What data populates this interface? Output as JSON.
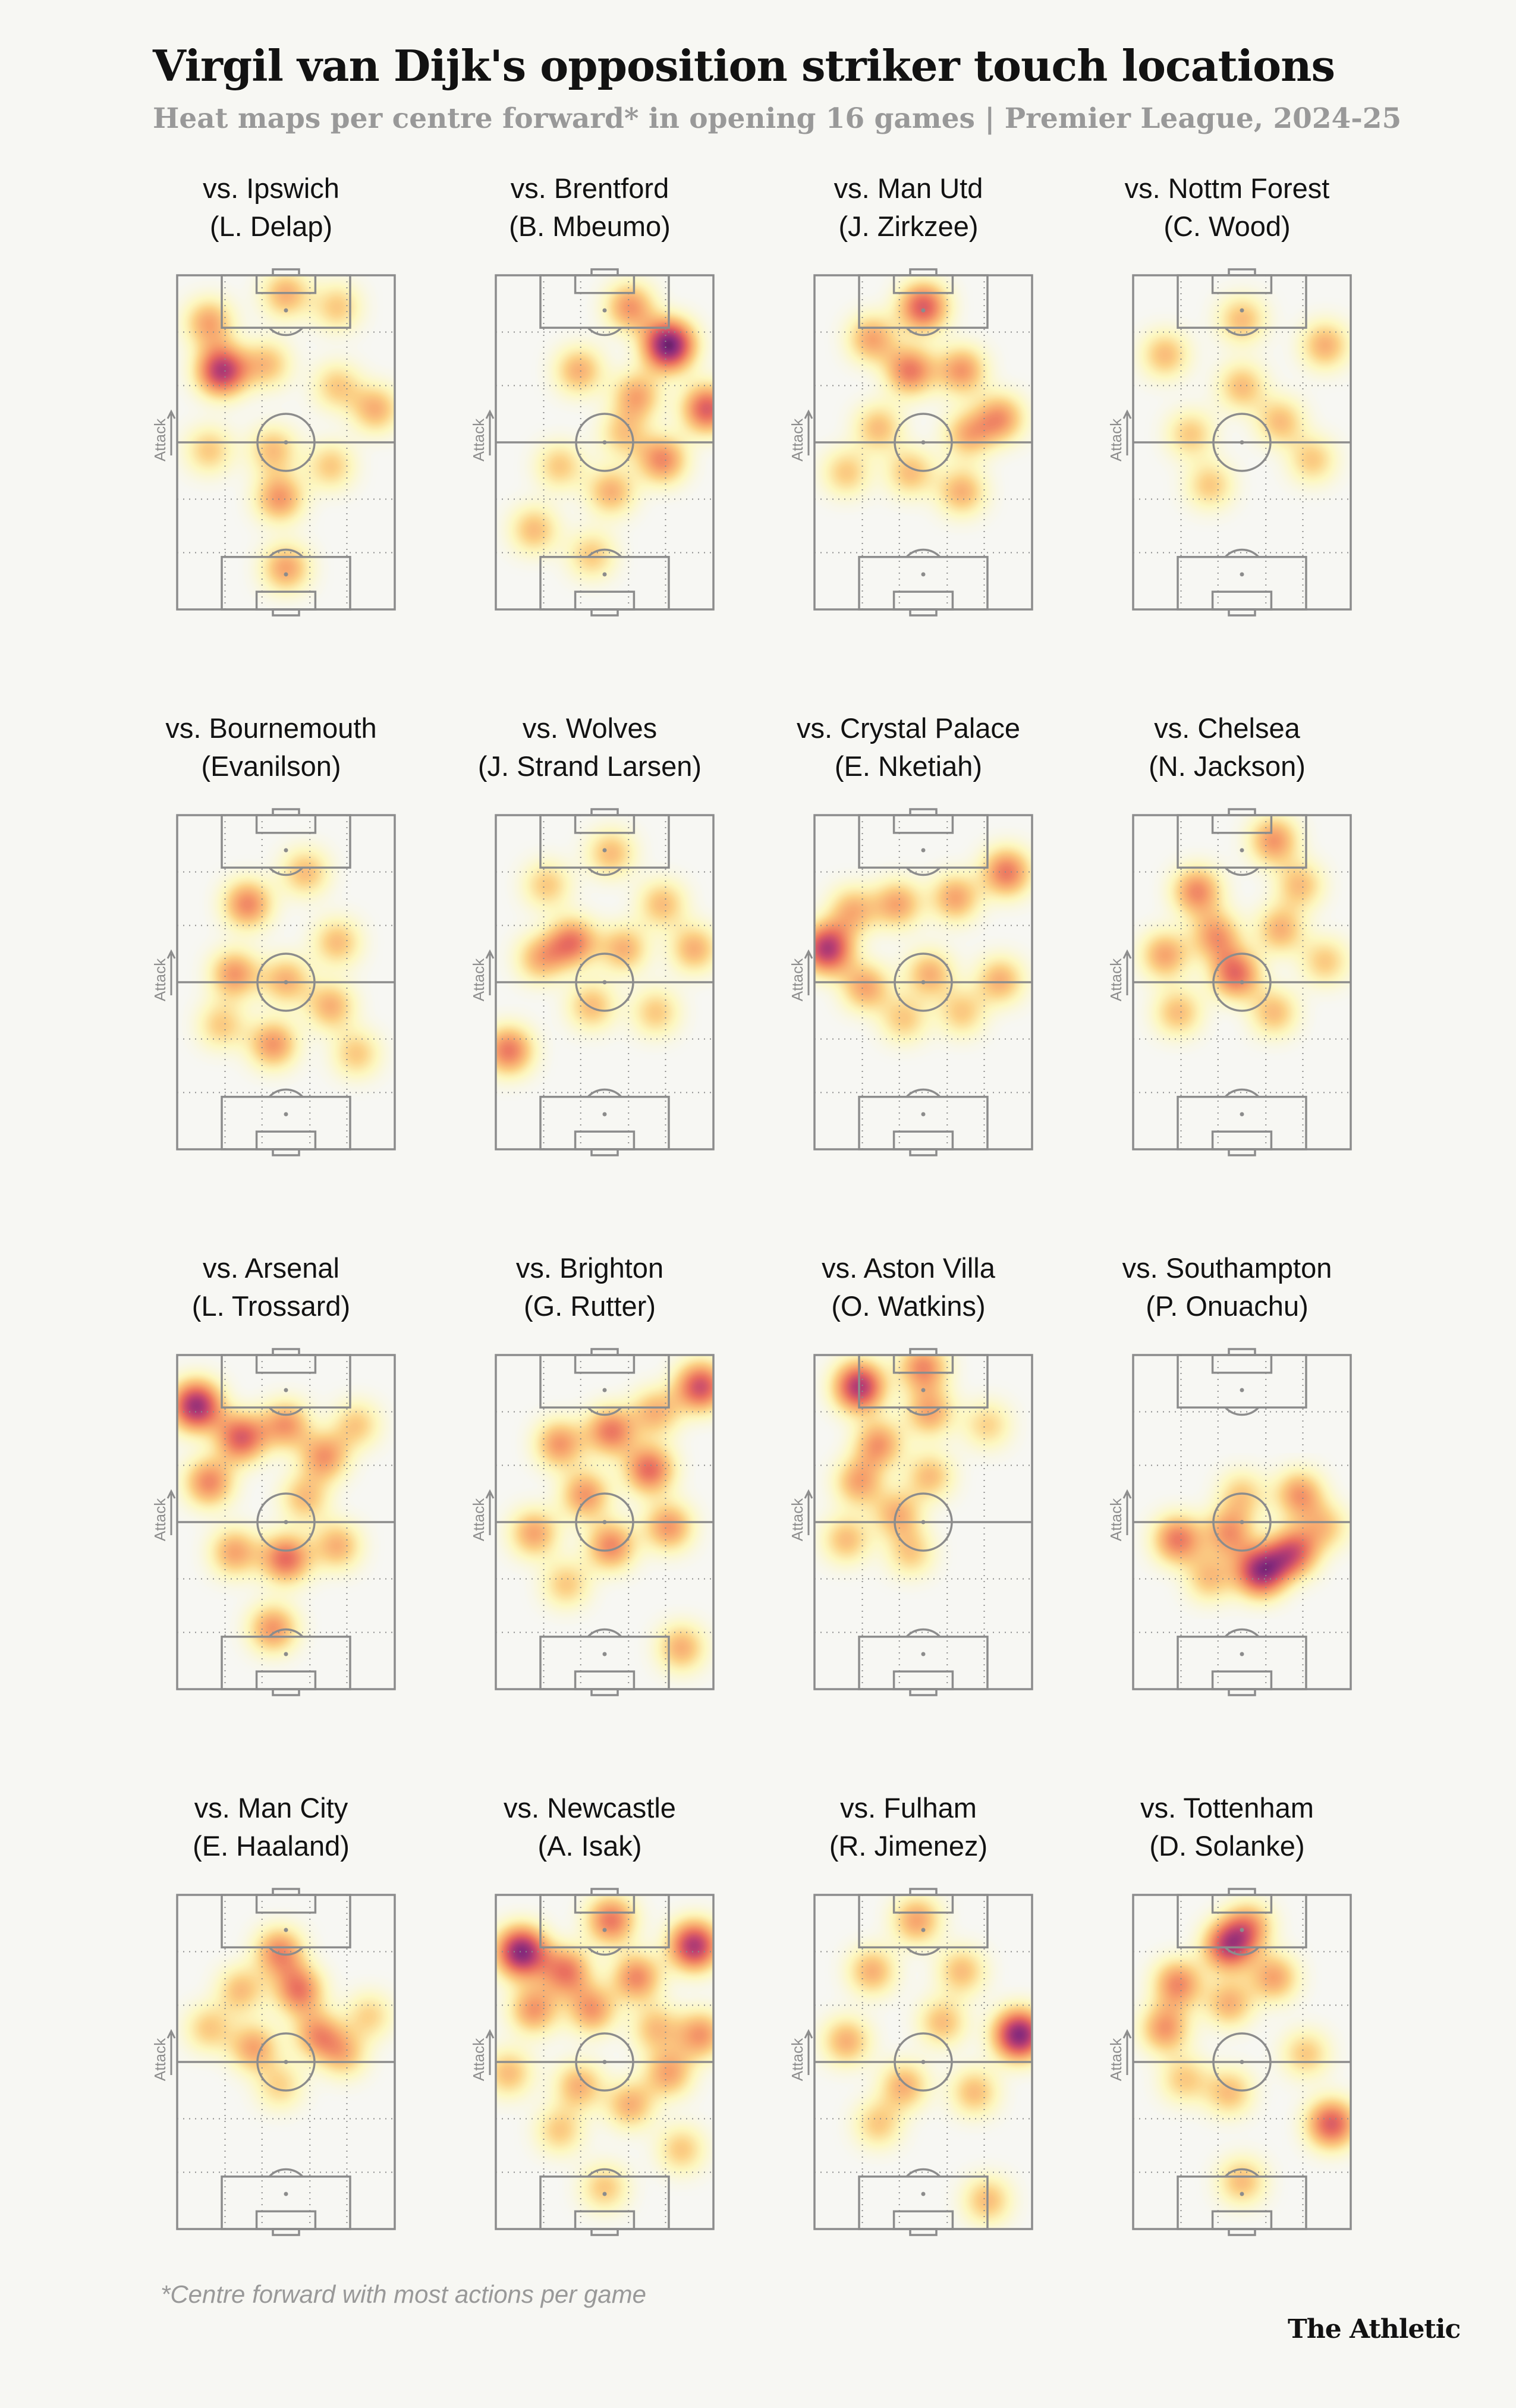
{
  "header": {
    "title": "Virgil van Dijk's opposition striker touch locations",
    "subtitle": "Heat maps per centre forward* in opening 16 games | Premier League, 2024-25"
  },
  "footer": {
    "footnote": "*Centre forward with most actions per game",
    "brand": "The Athletic"
  },
  "colors": {
    "background": "#f7f7f3",
    "pitch_lines": "#8c8c8c",
    "heat_scale": [
      "#fff7b0",
      "#fcd287",
      "#f7a36c",
      "#ea6f5f",
      "#c24470",
      "#862a7c",
      "#321149"
    ]
  },
  "chart_data": {
    "type": "heatmap",
    "axis_label": "Attack",
    "pitch": {
      "width": 68,
      "length": 105
    },
    "note": "Touch density peaks per match; x = 0 (left touchline) to 68, y = 0 (goal being attacked, top) to 105; w = relative intensity 0-1",
    "panels": [
      {
        "opponent": "vs. Ipswich",
        "player": "(L. Delap)",
        "hotspots": [
          {
            "x": 14,
            "y": 30,
            "w": 0.85
          },
          {
            "x": 10,
            "y": 15,
            "w": 0.45
          },
          {
            "x": 34,
            "y": 6,
            "w": 0.4
          },
          {
            "x": 50,
            "y": 10,
            "w": 0.3
          },
          {
            "x": 28,
            "y": 28,
            "w": 0.35
          },
          {
            "x": 62,
            "y": 42,
            "w": 0.4
          },
          {
            "x": 50,
            "y": 35,
            "w": 0.3
          },
          {
            "x": 30,
            "y": 55,
            "w": 0.35
          },
          {
            "x": 32,
            "y": 70,
            "w": 0.5
          },
          {
            "x": 48,
            "y": 60,
            "w": 0.3
          },
          {
            "x": 34,
            "y": 92,
            "w": 0.45
          },
          {
            "x": 10,
            "y": 55,
            "w": 0.3
          }
        ]
      },
      {
        "opponent": "vs. Brentford",
        "player": "(B. Mbeumo)",
        "hotspots": [
          {
            "x": 54,
            "y": 22,
            "w": 1.0
          },
          {
            "x": 66,
            "y": 42,
            "w": 0.7
          },
          {
            "x": 42,
            "y": 10,
            "w": 0.5
          },
          {
            "x": 26,
            "y": 30,
            "w": 0.4
          },
          {
            "x": 44,
            "y": 38,
            "w": 0.45
          },
          {
            "x": 52,
            "y": 58,
            "w": 0.55
          },
          {
            "x": 36,
            "y": 68,
            "w": 0.4
          },
          {
            "x": 20,
            "y": 60,
            "w": 0.3
          },
          {
            "x": 12,
            "y": 80,
            "w": 0.35
          },
          {
            "x": 30,
            "y": 88,
            "w": 0.3
          },
          {
            "x": 40,
            "y": 50,
            "w": 0.3
          }
        ]
      },
      {
        "opponent": "vs. Man Utd",
        "player": "(J. Zirkzee)",
        "hotspots": [
          {
            "x": 34,
            "y": 10,
            "w": 0.7
          },
          {
            "x": 18,
            "y": 20,
            "w": 0.45
          },
          {
            "x": 30,
            "y": 30,
            "w": 0.6
          },
          {
            "x": 46,
            "y": 30,
            "w": 0.5
          },
          {
            "x": 58,
            "y": 45,
            "w": 0.5
          },
          {
            "x": 48,
            "y": 50,
            "w": 0.4
          },
          {
            "x": 20,
            "y": 48,
            "w": 0.35
          },
          {
            "x": 10,
            "y": 62,
            "w": 0.3
          },
          {
            "x": 30,
            "y": 62,
            "w": 0.35
          },
          {
            "x": 46,
            "y": 68,
            "w": 0.4
          }
        ]
      },
      {
        "opponent": "vs. Nottm Forest",
        "player": "(C. Wood)",
        "hotspots": [
          {
            "x": 10,
            "y": 25,
            "w": 0.35
          },
          {
            "x": 34,
            "y": 14,
            "w": 0.35
          },
          {
            "x": 60,
            "y": 22,
            "w": 0.4
          },
          {
            "x": 34,
            "y": 35,
            "w": 0.35
          },
          {
            "x": 18,
            "y": 50,
            "w": 0.3
          },
          {
            "x": 46,
            "y": 46,
            "w": 0.35
          },
          {
            "x": 56,
            "y": 58,
            "w": 0.3
          },
          {
            "x": 24,
            "y": 66,
            "w": 0.3
          }
        ]
      },
      {
        "opponent": "vs. Bournemouth",
        "player": "(Evanilson)",
        "hotspots": [
          {
            "x": 22,
            "y": 28,
            "w": 0.55
          },
          {
            "x": 40,
            "y": 18,
            "w": 0.35
          },
          {
            "x": 50,
            "y": 40,
            "w": 0.35
          },
          {
            "x": 18,
            "y": 50,
            "w": 0.5
          },
          {
            "x": 34,
            "y": 52,
            "w": 0.4
          },
          {
            "x": 48,
            "y": 60,
            "w": 0.4
          },
          {
            "x": 30,
            "y": 72,
            "w": 0.5
          },
          {
            "x": 14,
            "y": 66,
            "w": 0.3
          },
          {
            "x": 56,
            "y": 75,
            "w": 0.3
          }
        ]
      },
      {
        "opponent": "vs. Wolves",
        "player": "(J. Strand Larsen)",
        "hotspots": [
          {
            "x": 24,
            "y": 40,
            "w": 0.6
          },
          {
            "x": 40,
            "y": 42,
            "w": 0.4
          },
          {
            "x": 62,
            "y": 42,
            "w": 0.4
          },
          {
            "x": 14,
            "y": 45,
            "w": 0.4
          },
          {
            "x": 36,
            "y": 12,
            "w": 0.35
          },
          {
            "x": 52,
            "y": 28,
            "w": 0.35
          },
          {
            "x": 30,
            "y": 60,
            "w": 0.35
          },
          {
            "x": 4,
            "y": 74,
            "w": 0.6
          },
          {
            "x": 50,
            "y": 62,
            "w": 0.3
          },
          {
            "x": 16,
            "y": 22,
            "w": 0.3
          }
        ]
      },
      {
        "opponent": "vs. Crystal Palace",
        "player": "(E. Nketiah)",
        "hotspots": [
          {
            "x": 4,
            "y": 42,
            "w": 0.85
          },
          {
            "x": 60,
            "y": 18,
            "w": 0.6
          },
          {
            "x": 44,
            "y": 26,
            "w": 0.45
          },
          {
            "x": 26,
            "y": 28,
            "w": 0.45
          },
          {
            "x": 12,
            "y": 30,
            "w": 0.4
          },
          {
            "x": 16,
            "y": 54,
            "w": 0.45
          },
          {
            "x": 36,
            "y": 50,
            "w": 0.4
          },
          {
            "x": 58,
            "y": 52,
            "w": 0.4
          },
          {
            "x": 28,
            "y": 64,
            "w": 0.3
          },
          {
            "x": 46,
            "y": 62,
            "w": 0.3
          }
        ]
      },
      {
        "opponent": "vs. Chelsea",
        "player": "(N. Jackson)",
        "hotspots": [
          {
            "x": 32,
            "y": 50,
            "w": 0.65
          },
          {
            "x": 20,
            "y": 24,
            "w": 0.55
          },
          {
            "x": 44,
            "y": 8,
            "w": 0.5
          },
          {
            "x": 52,
            "y": 22,
            "w": 0.35
          },
          {
            "x": 10,
            "y": 44,
            "w": 0.45
          },
          {
            "x": 26,
            "y": 38,
            "w": 0.5
          },
          {
            "x": 46,
            "y": 36,
            "w": 0.4
          },
          {
            "x": 14,
            "y": 62,
            "w": 0.35
          },
          {
            "x": 44,
            "y": 62,
            "w": 0.35
          },
          {
            "x": 60,
            "y": 46,
            "w": 0.3
          }
        ]
      },
      {
        "opponent": "vs. Arsenal",
        "player": "(L. Trossard)",
        "hotspots": [
          {
            "x": 6,
            "y": 16,
            "w": 0.9
          },
          {
            "x": 20,
            "y": 26,
            "w": 0.7
          },
          {
            "x": 10,
            "y": 40,
            "w": 0.55
          },
          {
            "x": 34,
            "y": 22,
            "w": 0.5
          },
          {
            "x": 46,
            "y": 32,
            "w": 0.5
          },
          {
            "x": 34,
            "y": 64,
            "w": 0.65
          },
          {
            "x": 18,
            "y": 62,
            "w": 0.45
          },
          {
            "x": 30,
            "y": 86,
            "w": 0.5
          },
          {
            "x": 50,
            "y": 60,
            "w": 0.4
          },
          {
            "x": 56,
            "y": 22,
            "w": 0.3
          },
          {
            "x": 40,
            "y": 45,
            "w": 0.35
          }
        ]
      },
      {
        "opponent": "vs. Brighton",
        "player": "(G. Rutter)",
        "hotspots": [
          {
            "x": 64,
            "y": 10,
            "w": 0.75
          },
          {
            "x": 48,
            "y": 36,
            "w": 0.65
          },
          {
            "x": 36,
            "y": 24,
            "w": 0.6
          },
          {
            "x": 20,
            "y": 28,
            "w": 0.5
          },
          {
            "x": 28,
            "y": 44,
            "w": 0.5
          },
          {
            "x": 12,
            "y": 56,
            "w": 0.45
          },
          {
            "x": 36,
            "y": 60,
            "w": 0.55
          },
          {
            "x": 54,
            "y": 54,
            "w": 0.5
          },
          {
            "x": 58,
            "y": 92,
            "w": 0.4
          },
          {
            "x": 50,
            "y": 18,
            "w": 0.4
          },
          {
            "x": 22,
            "y": 72,
            "w": 0.3
          }
        ]
      },
      {
        "opponent": "vs. Aston Villa",
        "player": "(O. Watkins)",
        "hotspots": [
          {
            "x": 14,
            "y": 10,
            "w": 0.85
          },
          {
            "x": 34,
            "y": 4,
            "w": 0.55
          },
          {
            "x": 36,
            "y": 18,
            "w": 0.45
          },
          {
            "x": 20,
            "y": 28,
            "w": 0.5
          },
          {
            "x": 14,
            "y": 40,
            "w": 0.45
          },
          {
            "x": 26,
            "y": 50,
            "w": 0.4
          },
          {
            "x": 36,
            "y": 38,
            "w": 0.35
          },
          {
            "x": 10,
            "y": 58,
            "w": 0.35
          },
          {
            "x": 30,
            "y": 62,
            "w": 0.3
          },
          {
            "x": 54,
            "y": 22,
            "w": 0.25
          }
        ]
      },
      {
        "opponent": "vs. Southampton",
        "player": "(P. Onuachu)",
        "hotspots": [
          {
            "x": 40,
            "y": 68,
            "w": 0.9
          },
          {
            "x": 50,
            "y": 62,
            "w": 0.7
          },
          {
            "x": 14,
            "y": 58,
            "w": 0.6
          },
          {
            "x": 30,
            "y": 56,
            "w": 0.5
          },
          {
            "x": 52,
            "y": 44,
            "w": 0.5
          },
          {
            "x": 34,
            "y": 44,
            "w": 0.3
          },
          {
            "x": 24,
            "y": 70,
            "w": 0.35
          },
          {
            "x": 60,
            "y": 54,
            "w": 0.3
          }
        ]
      },
      {
        "opponent": "vs. Man City",
        "player": "(E. Haaland)",
        "hotspots": [
          {
            "x": 32,
            "y": 18,
            "w": 0.55
          },
          {
            "x": 38,
            "y": 30,
            "w": 0.6
          },
          {
            "x": 44,
            "y": 44,
            "w": 0.5
          },
          {
            "x": 24,
            "y": 48,
            "w": 0.45
          },
          {
            "x": 52,
            "y": 50,
            "w": 0.35
          },
          {
            "x": 20,
            "y": 30,
            "w": 0.35
          },
          {
            "x": 10,
            "y": 42,
            "w": 0.3
          },
          {
            "x": 60,
            "y": 38,
            "w": 0.25
          },
          {
            "x": 32,
            "y": 60,
            "w": 0.25
          }
        ]
      },
      {
        "opponent": "vs. Newcastle",
        "player": "(A. Isak)",
        "hotspots": [
          {
            "x": 8,
            "y": 18,
            "w": 0.95
          },
          {
            "x": 62,
            "y": 16,
            "w": 0.85
          },
          {
            "x": 22,
            "y": 24,
            "w": 0.6
          },
          {
            "x": 36,
            "y": 8,
            "w": 0.6
          },
          {
            "x": 44,
            "y": 26,
            "w": 0.55
          },
          {
            "x": 30,
            "y": 36,
            "w": 0.5
          },
          {
            "x": 12,
            "y": 36,
            "w": 0.5
          },
          {
            "x": 64,
            "y": 44,
            "w": 0.5
          },
          {
            "x": 54,
            "y": 56,
            "w": 0.45
          },
          {
            "x": 26,
            "y": 60,
            "w": 0.4
          },
          {
            "x": 42,
            "y": 66,
            "w": 0.4
          },
          {
            "x": 4,
            "y": 56,
            "w": 0.35
          },
          {
            "x": 20,
            "y": 74,
            "w": 0.3
          },
          {
            "x": 34,
            "y": 92,
            "w": 0.3
          },
          {
            "x": 58,
            "y": 80,
            "w": 0.3
          },
          {
            "x": 50,
            "y": 42,
            "w": 0.35
          }
        ]
      },
      {
        "opponent": "vs. Fulham",
        "player": "(R. Jimenez)",
        "hotspots": [
          {
            "x": 64,
            "y": 44,
            "w": 0.95
          },
          {
            "x": 32,
            "y": 8,
            "w": 0.45
          },
          {
            "x": 18,
            "y": 24,
            "w": 0.4
          },
          {
            "x": 46,
            "y": 24,
            "w": 0.35
          },
          {
            "x": 10,
            "y": 46,
            "w": 0.4
          },
          {
            "x": 40,
            "y": 40,
            "w": 0.35
          },
          {
            "x": 28,
            "y": 60,
            "w": 0.4
          },
          {
            "x": 50,
            "y": 62,
            "w": 0.35
          },
          {
            "x": 20,
            "y": 72,
            "w": 0.3
          },
          {
            "x": 54,
            "y": 96,
            "w": 0.35
          }
        ]
      },
      {
        "opponent": "vs. Tottenham",
        "player": "(D. Solanke)",
        "hotspots": [
          {
            "x": 30,
            "y": 16,
            "w": 0.8
          },
          {
            "x": 36,
            "y": 10,
            "w": 0.5
          },
          {
            "x": 14,
            "y": 28,
            "w": 0.55
          },
          {
            "x": 10,
            "y": 42,
            "w": 0.5
          },
          {
            "x": 44,
            "y": 26,
            "w": 0.45
          },
          {
            "x": 30,
            "y": 34,
            "w": 0.4
          },
          {
            "x": 62,
            "y": 72,
            "w": 0.7
          },
          {
            "x": 30,
            "y": 62,
            "w": 0.35
          },
          {
            "x": 54,
            "y": 50,
            "w": 0.3
          },
          {
            "x": 34,
            "y": 90,
            "w": 0.35
          },
          {
            "x": 16,
            "y": 58,
            "w": 0.3
          }
        ]
      }
    ]
  }
}
